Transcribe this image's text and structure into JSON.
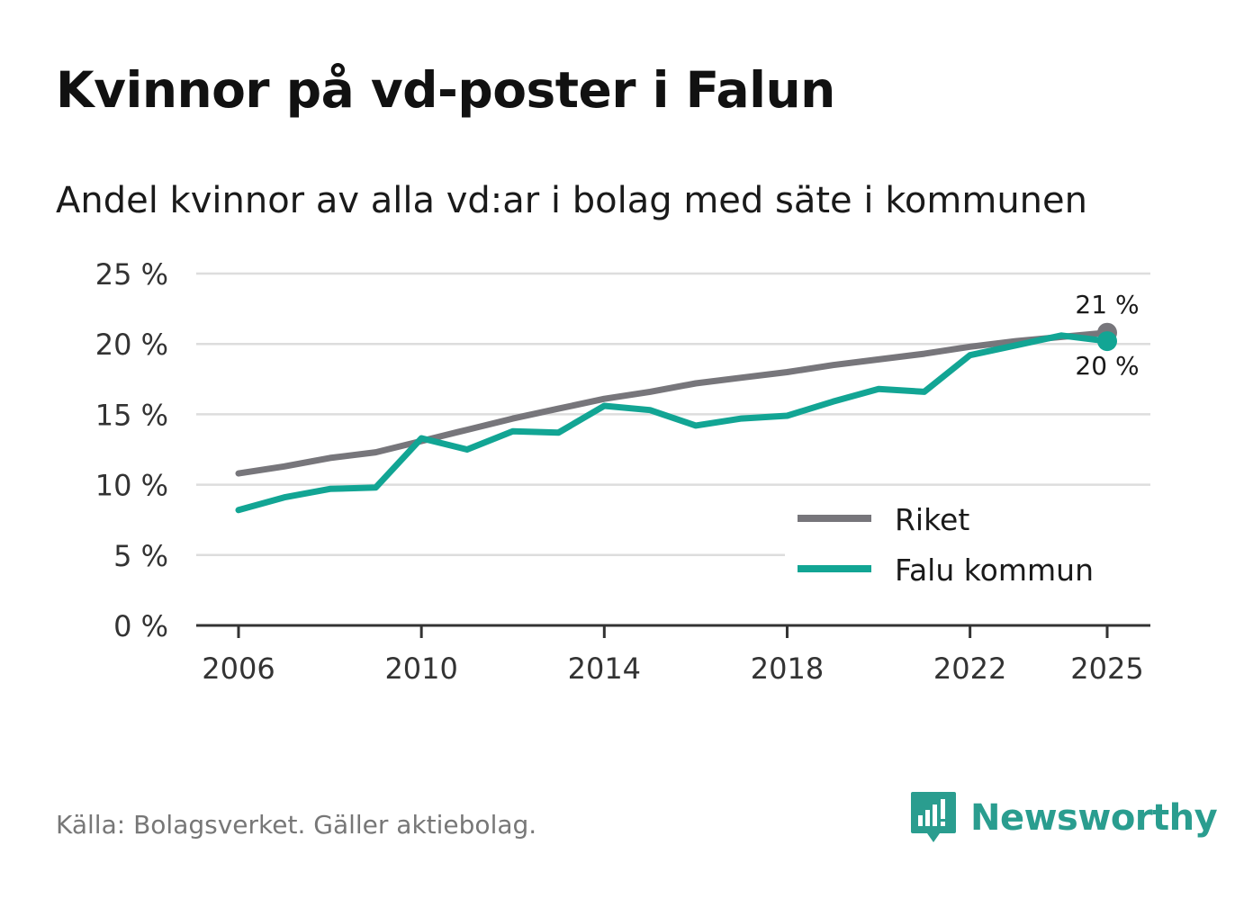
{
  "title": "Kvinnor på vd-poster i Falun",
  "subtitle": "Andel kvinnor av alla vd:ar i bolag med säte i kommunen",
  "source": "Källa: Bolagsverket. Gäller aktiebolag.",
  "brand": {
    "name": "Newsworthy"
  },
  "colors": {
    "riket": "#77767b",
    "falun": "#12a594",
    "grid": "#dddddd",
    "axis": "#333333"
  },
  "chart_data": {
    "type": "line",
    "title": "Kvinnor på vd-poster i Falun",
    "subtitle": "Andel kvinnor av alla vd:ar i bolag med säte i kommunen",
    "xlabel": "",
    "ylabel": "",
    "x": [
      2006,
      2007,
      2008,
      2009,
      2010,
      2011,
      2012,
      2013,
      2014,
      2015,
      2016,
      2017,
      2018,
      2019,
      2020,
      2021,
      2022,
      2023,
      2024,
      2025
    ],
    "ylim": [
      0,
      25
    ],
    "xlim": [
      2006,
      2025
    ],
    "yticks": [
      0,
      5,
      10,
      15,
      20,
      25
    ],
    "ytick_labels": [
      "0 %",
      "5 %",
      "10 %",
      "15 %",
      "20 %",
      "25 %"
    ],
    "xticks": [
      2006,
      2010,
      2014,
      2018,
      2022,
      2025
    ],
    "xtick_labels": [
      "2006",
      "2010",
      "2014",
      "2018",
      "2022",
      "2025"
    ],
    "grid": true,
    "legend_position": "bottom-right",
    "series": [
      {
        "name": "Riket",
        "key": "riket",
        "values": [
          10.8,
          11.3,
          11.9,
          12.3,
          13.1,
          13.9,
          14.7,
          15.4,
          16.1,
          16.6,
          17.2,
          17.6,
          18.0,
          18.5,
          18.9,
          19.3,
          19.8,
          20.2,
          20.5,
          20.8
        ],
        "end_label": "21 %"
      },
      {
        "name": "Falu kommun",
        "key": "falun",
        "values": [
          8.2,
          9.1,
          9.7,
          9.8,
          13.3,
          12.5,
          13.8,
          13.7,
          15.6,
          15.3,
          14.2,
          14.7,
          14.9,
          15.9,
          16.8,
          16.6,
          19.2,
          19.9,
          20.6,
          20.2
        ],
        "end_label": "20 %"
      }
    ]
  }
}
